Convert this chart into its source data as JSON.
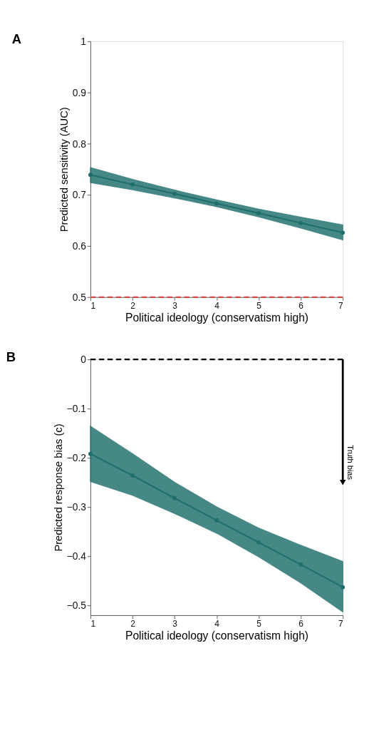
{
  "chart_data": [
    {
      "type": "line",
      "title": "A",
      "xlabel": "Political ideology (conservatism high)",
      "ylabel": "Predicted sensitivity (AUC)",
      "x": [
        1,
        2,
        3,
        4,
        5,
        6,
        7
      ],
      "series": [
        {
          "color": "#1e6e6c",
          "values": [
            0.739,
            0.72,
            0.702,
            0.683,
            0.664,
            0.645,
            0.626
          ],
          "lower": [
            0.724,
            0.71,
            0.694,
            0.677,
            0.657,
            0.635,
            0.612
          ],
          "upper": [
            0.753,
            0.73,
            0.709,
            0.69,
            0.672,
            0.656,
            0.641
          ]
        }
      ],
      "xlim": [
        1,
        7
      ],
      "xticks": [
        1,
        2,
        3,
        4,
        5,
        6,
        7
      ],
      "ylim": [
        0.5,
        1
      ],
      "yticks": [
        0.5,
        0.6,
        0.7,
        0.8,
        0.9,
        1
      ],
      "ref_lines": [
        {
          "axis": "y",
          "value": 0.5,
          "color": "#e8413c",
          "line_style": "dashed"
        }
      ],
      "marker": "circle",
      "grid": false,
      "legend": false
    },
    {
      "type": "line",
      "title": "B",
      "xlabel": "Political ideology (conservatism high)",
      "ylabel": "Predicted response bias (c)",
      "x": [
        1,
        2,
        3,
        4,
        5,
        6,
        7
      ],
      "series": [
        {
          "color": "#1e6e6c",
          "values": [
            -0.192,
            -0.236,
            -0.282,
            -0.327,
            -0.372,
            -0.417,
            -0.463
          ],
          "lower": [
            -0.248,
            -0.276,
            -0.313,
            -0.353,
            -0.401,
            -0.454,
            -0.513
          ],
          "upper": [
            -0.136,
            -0.192,
            -0.25,
            -0.3,
            -0.343,
            -0.378,
            -0.411
          ]
        }
      ],
      "xlim": [
        1,
        7
      ],
      "xticks": [
        1,
        2,
        3,
        4,
        5,
        6,
        7
      ],
      "ylim": [
        -0.52,
        0
      ],
      "yticks": [
        {
          "value": -0.5,
          "label": "−0.5"
        },
        {
          "value": -0.4,
          "label": "−0.4"
        },
        {
          "value": -0.3,
          "label": "−0.3"
        },
        {
          "value": -0.2,
          "label": "−0.2"
        },
        {
          "value": -0.1,
          "label": "−0.1"
        },
        0
      ],
      "ref_lines": [
        {
          "axis": "y",
          "value": 0,
          "color": "#000000",
          "line_style": "dashed"
        }
      ],
      "annotations": [
        {
          "text": "Truth bias",
          "x": 7,
          "y": -0.25
        }
      ],
      "marker": "circle",
      "grid": false,
      "legend": false
    }
  ]
}
